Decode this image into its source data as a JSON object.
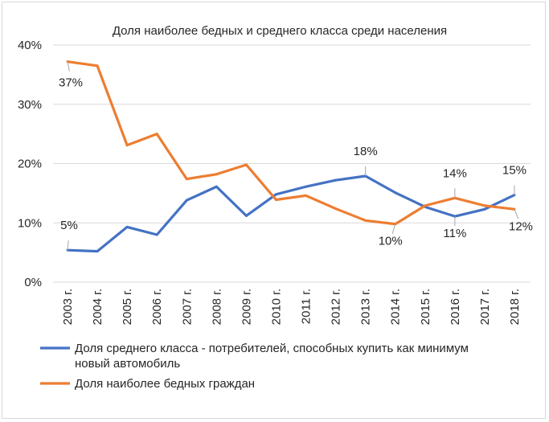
{
  "chart_data": {
    "type": "line",
    "title": "Доля наиболее бедных и среднего класса среди населения",
    "xlabel": "",
    "ylabel": "",
    "categories": [
      "2003 г.",
      "2004 г.",
      "2005 г.",
      "2006 г.",
      "2007 г.",
      "2008 г.",
      "2009 г.",
      "2010 г.",
      "2011 г.",
      "2012 г.",
      "2013 г.",
      "2014 г.",
      "2015 г.",
      "2016 г.",
      "2017 г.",
      "2018 г."
    ],
    "ylim": [
      0,
      40
    ],
    "yticks": [
      "0%",
      "10%",
      "20%",
      "30%",
      "40%"
    ],
    "grid": true,
    "legend": "bottom",
    "series": [
      {
        "name": "Доля среднего класса - потребителей, способных купить как минимум новый автомобиль",
        "color": "#4472c4",
        "values": [
          5.4,
          5.2,
          9.3,
          8.0,
          13.8,
          16.1,
          11.2,
          14.8,
          16.1,
          17.2,
          17.9,
          15.1,
          12.7,
          11.1,
          12.3,
          14.7
        ],
        "data_labels": [
          {
            "index": 0,
            "text": "5%"
          },
          {
            "index": 10,
            "text": "18%"
          },
          {
            "index": 13,
            "text": "11%"
          },
          {
            "index": 15,
            "text": "15%"
          }
        ]
      },
      {
        "name": "Доля наиболее бедных граждан",
        "color": "#ed7d31",
        "values": [
          37.2,
          36.5,
          23.1,
          25.0,
          17.4,
          18.2,
          19.8,
          13.9,
          14.6,
          12.4,
          10.4,
          9.8,
          12.9,
          14.2,
          12.9,
          12.3
        ],
        "data_labels": [
          {
            "index": 0,
            "text": "37%"
          },
          {
            "index": 11,
            "text": "10%"
          },
          {
            "index": 13,
            "text": "14%"
          },
          {
            "index": 15,
            "text": "12%"
          }
        ]
      }
    ]
  }
}
